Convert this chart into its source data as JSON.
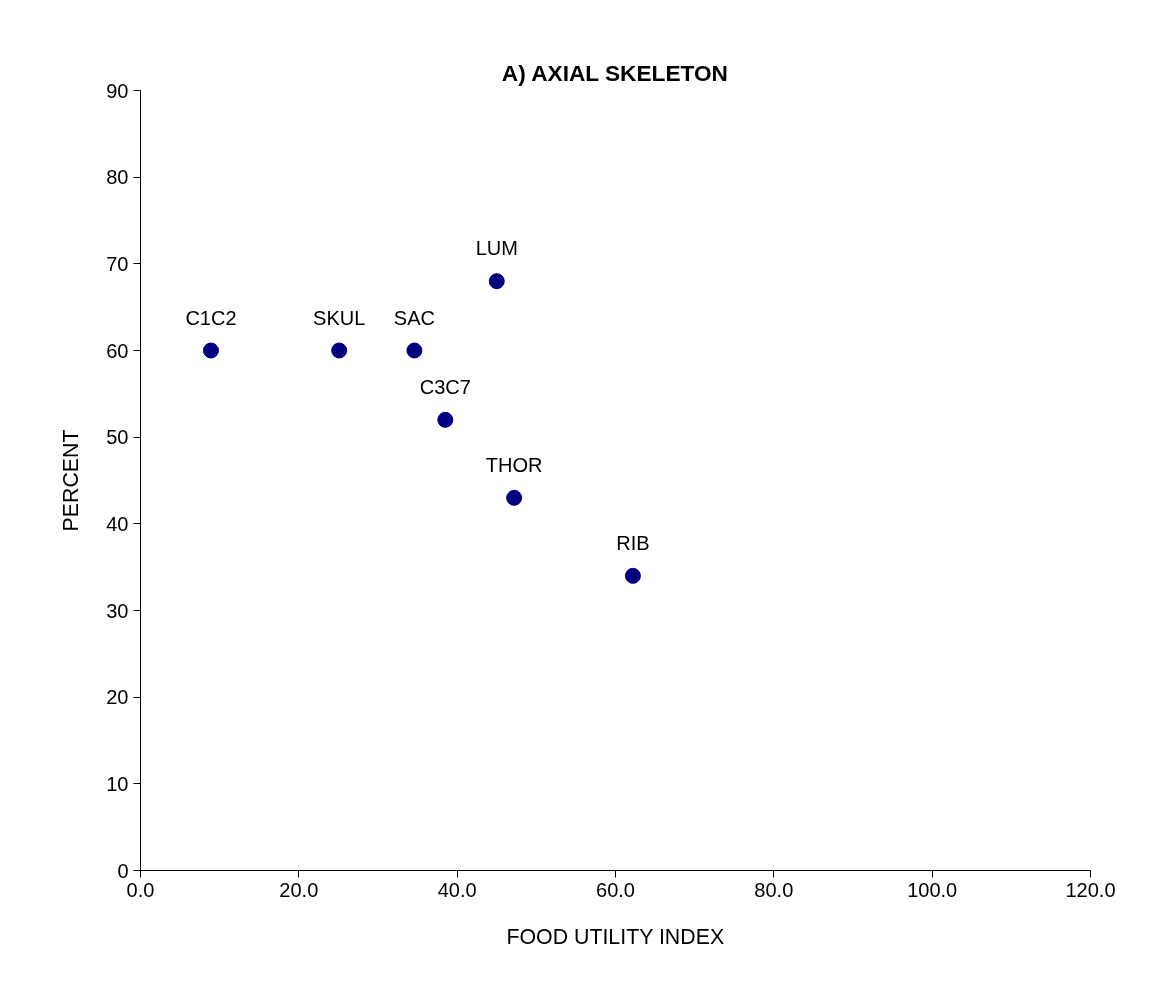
{
  "chart_data": {
    "type": "scatter",
    "title": "A) AXIAL SKELETON",
    "xlabel": "FOOD UTILITY INDEX",
    "ylabel": "PERCENT",
    "x": [
      8.9,
      25.1,
      34.6,
      45.0,
      38.5,
      47.2,
      62.2
    ],
    "series": [
      {
        "color": "#000080",
        "values": [
          60,
          60,
          60,
          68,
          52,
          43,
          34
        ]
      }
    ],
    "annotations": [
      {
        "text": "C1C2",
        "x": 8.9,
        "y": 60
      },
      {
        "text": "SKUL",
        "x": 25.1,
        "y": 60
      },
      {
        "text": "SAC",
        "x": 34.6,
        "y": 60
      },
      {
        "text": "LUM",
        "x": 45.0,
        "y": 68
      },
      {
        "text": "C3C7",
        "x": 38.5,
        "y": 52
      },
      {
        "text": "THOR",
        "x": 47.2,
        "y": 43
      },
      {
        "text": "RIB",
        "x": 62.2,
        "y": 34
      }
    ],
    "xlim": [
      0,
      120
    ],
    "xticks": [
      {
        "value": 0,
        "label": "0.0"
      },
      {
        "value": 20,
        "label": "20.0"
      },
      {
        "value": 40,
        "label": "40.0"
      },
      {
        "value": 60,
        "label": "60.0"
      },
      {
        "value": 80,
        "label": "80.0"
      },
      {
        "value": 100,
        "label": "100.0"
      },
      {
        "value": 120,
        "label": "120.0"
      }
    ],
    "ylim": [
      0,
      90
    ],
    "yticks": [
      0,
      10,
      20,
      30,
      40,
      50,
      60,
      70,
      80,
      90
    ],
    "grid": false,
    "marker": "circle"
  }
}
